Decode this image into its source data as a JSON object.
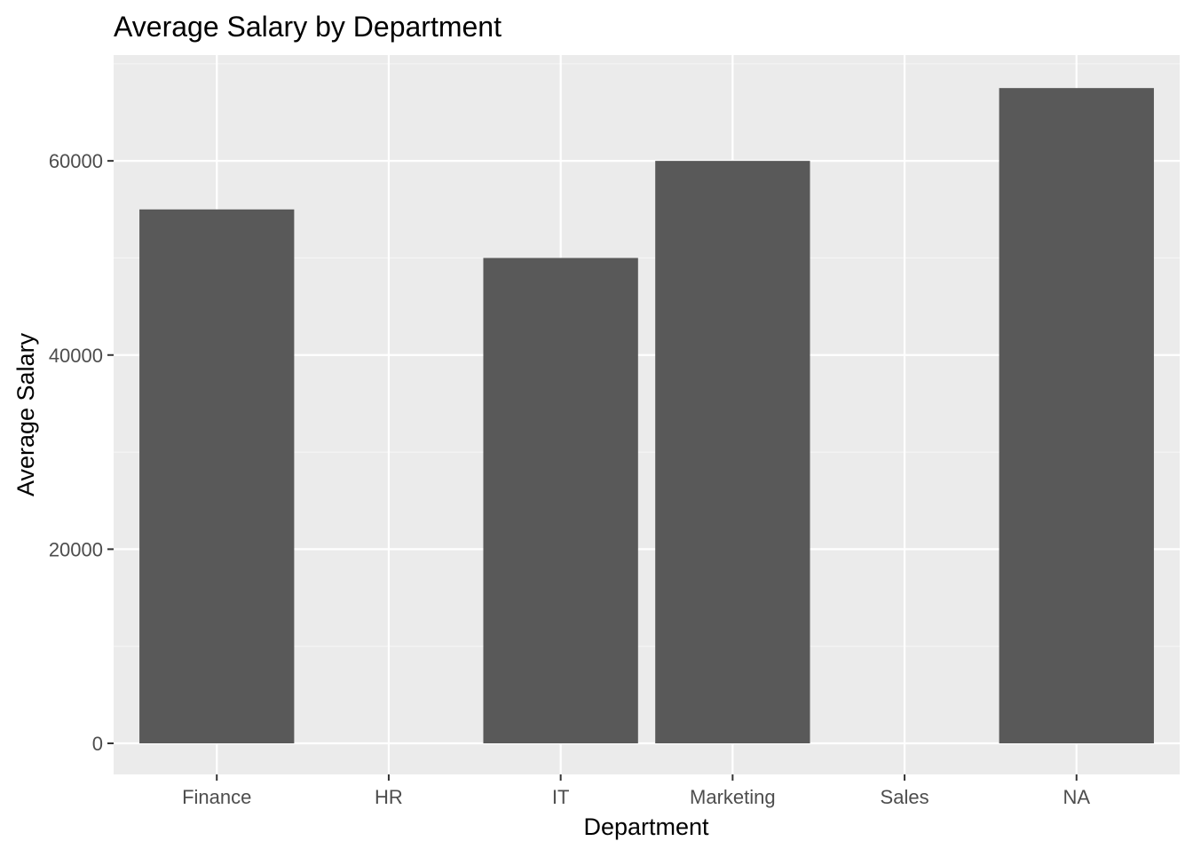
{
  "chart_data": {
    "type": "bar",
    "title": "Average Salary by Department",
    "xlabel": "Department",
    "ylabel": "Average Salary",
    "categories": [
      "Finance",
      "HR",
      "IT",
      "Marketing",
      "Sales",
      "NA"
    ],
    "values": [
      55000,
      null,
      50000,
      60000,
      null,
      67500
    ],
    "ylim": [
      -3200,
      70900
    ],
    "yticks": [
      0,
      20000,
      40000,
      60000
    ],
    "ytick_labels": [
      "0",
      "20000",
      "40000",
      "60000"
    ],
    "grid": true,
    "legend": "none",
    "colors": {
      "panel_background": "#ebebeb",
      "grid_major": "#ffffff",
      "grid_minor": "#f5f5f5",
      "bar_fill": "#595959",
      "tick_text": "#4d4d4d",
      "tick_mark": "#333333",
      "title_text": "#000000"
    }
  }
}
